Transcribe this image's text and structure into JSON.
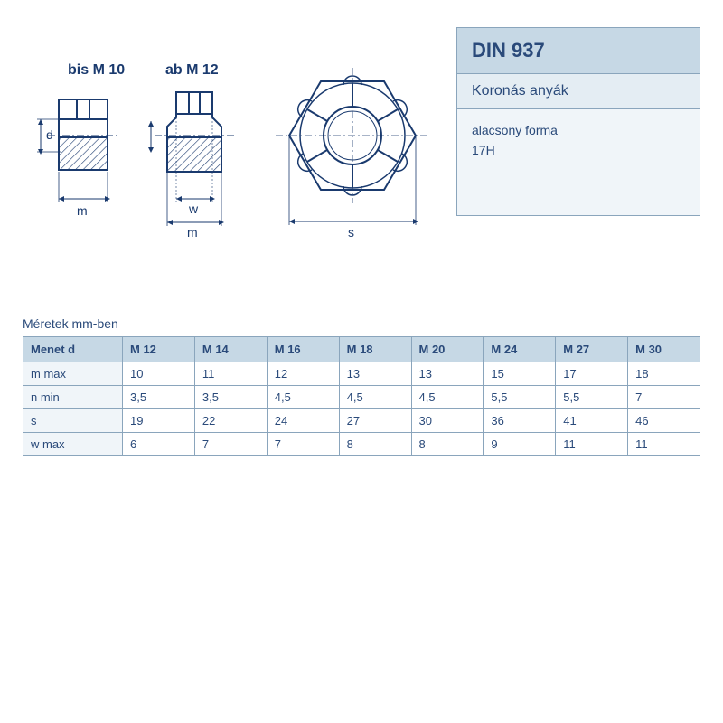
{
  "info": {
    "standard": "DIN 937",
    "name": "Koronás anyák",
    "desc1": "alacsony forma",
    "desc2": "17H"
  },
  "diagram": {
    "label_bis": "bis M 10",
    "label_ab": "ab M 12",
    "dim_d": "d",
    "dim_m": "m",
    "dim_w": "w",
    "dim_s": "s",
    "stroke": "#1a3a6e",
    "hatch": "#1a3a6e"
  },
  "table": {
    "caption": "Méretek mm-ben",
    "header_first": "Menet d",
    "columns": [
      "M 12",
      "M 14",
      "M 16",
      "M 18",
      "M 20",
      "M 24",
      "M 27",
      "M 30"
    ],
    "rows": [
      {
        "label": "m max",
        "values": [
          "10",
          "11",
          "12",
          "13",
          "13",
          "15",
          "17",
          "18"
        ]
      },
      {
        "label": "n min",
        "values": [
          "3,5",
          "3,5",
          "4,5",
          "4,5",
          "4,5",
          "5,5",
          "5,5",
          "7"
        ]
      },
      {
        "label": "s",
        "values": [
          "19",
          "22",
          "24",
          "27",
          "30",
          "36",
          "41",
          "46"
        ]
      },
      {
        "label": "w max",
        "values": [
          "6",
          "7",
          "7",
          "8",
          "8",
          "9",
          "11",
          "11"
        ]
      }
    ]
  },
  "style": {
    "panel_title_bg": "#c6d8e5",
    "panel_sub_bg": "#e4edf3",
    "panel_body_bg": "#f0f5f9",
    "border": "#8aa5bc",
    "text": "#2a4a7a"
  }
}
